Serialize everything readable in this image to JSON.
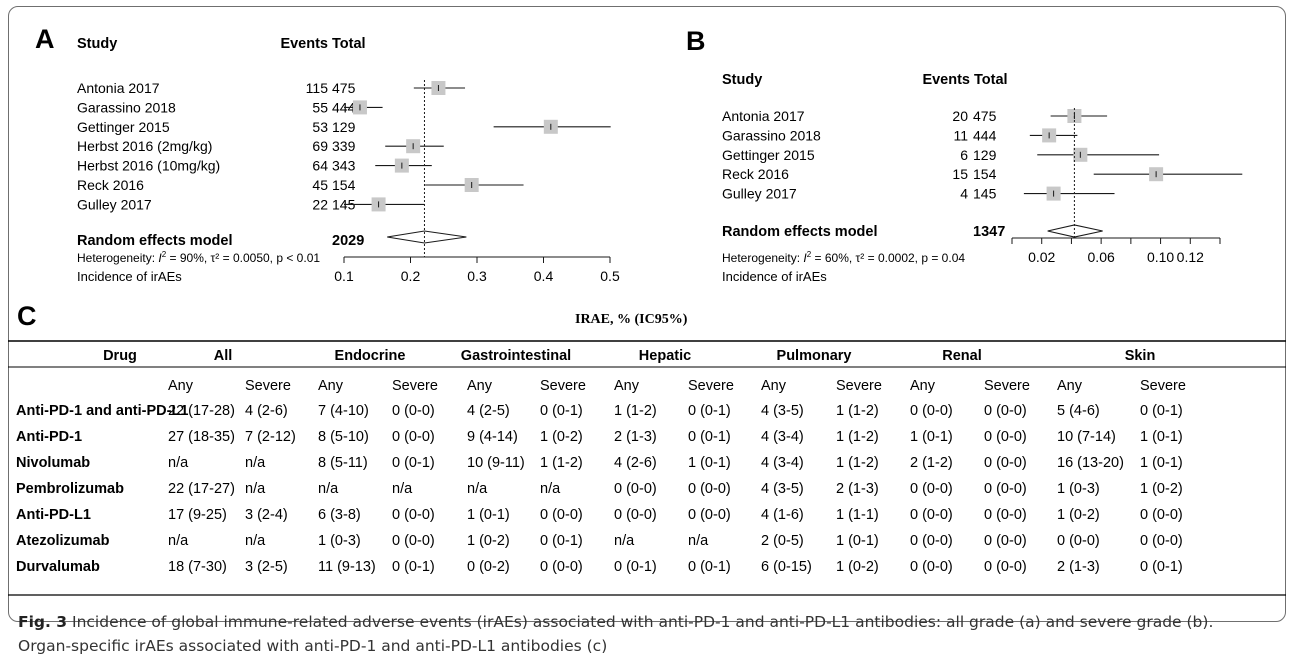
{
  "panels": {
    "a": {
      "letter": "A",
      "col_study": "Study",
      "col_events": "Events",
      "col_total": "Total",
      "model_label": "Random effects model",
      "model_total": "2029",
      "heterogeneity_prefix": "Heterogeneity: ",
      "heterogeneity_stats": " = 90%, τ² = 0.0050, p < 0.01",
      "xlabel": "Incidence of irAEs"
    },
    "b": {
      "letter": "B",
      "col_study": "Study",
      "col_events": "Events",
      "col_total": "Total",
      "model_label": "Random effects model",
      "model_total": "1347",
      "heterogeneity_prefix": "Heterogeneity: ",
      "heterogeneity_stats": " = 60%, τ² = 0.0002, p = 0.04",
      "xlabel": "Incidence of irAEs"
    },
    "c": {
      "letter": "C",
      "title": "IRAE, % (IC95%)"
    }
  },
  "chart_data": [
    {
      "type": "forest",
      "panel": "A",
      "xlabel": "Incidence of irAEs",
      "xlim": [
        0.1,
        0.5
      ],
      "ticks": [
        "0.1",
        "0.2",
        "0.3",
        "0.4",
        "0.5"
      ],
      "tick_values": [
        0.1,
        0.2,
        0.3,
        0.4,
        0.5
      ],
      "studies": [
        {
          "name": "Antonia 2017",
          "events": "115",
          "total": "475",
          "est": 0.242,
          "lo": 0.205,
          "hi": 0.282
        },
        {
          "name": "Garassino 2018",
          "events": "55",
          "total": "444",
          "est": 0.124,
          "lo": 0.095,
          "hi": 0.158
        },
        {
          "name": "Gettinger 2015",
          "events": "53",
          "total": "129",
          "est": 0.411,
          "lo": 0.325,
          "hi": 0.501
        },
        {
          "name": "Herbst 2016 (2mg/kg)",
          "events": "69",
          "total": "339",
          "est": 0.204,
          "lo": 0.162,
          "hi": 0.25
        },
        {
          "name": "Herbst 2016 (10mg/kg)",
          "events": "64",
          "total": "343",
          "est": 0.187,
          "lo": 0.147,
          "hi": 0.232
        },
        {
          "name": "Reck 2016",
          "events": "45",
          "total": "154",
          "est": 0.292,
          "lo": 0.222,
          "hi": 0.37
        },
        {
          "name": "Gulley 2017",
          "events": "22",
          "total": "145",
          "est": 0.152,
          "lo": 0.097,
          "hi": 0.221
        }
      ],
      "pooled": {
        "est": 0.221,
        "lo": 0.165,
        "hi": 0.284
      },
      "reference_line": 0.221
    },
    {
      "type": "forest",
      "panel": "B",
      "xlabel": "Incidence of irAEs",
      "xlim": [
        0.0,
        0.14
      ],
      "ticks": [
        "0.02",
        "0.06",
        "0.10",
        "0.12"
      ],
      "tick_values": [
        0.02,
        0.06,
        0.1,
        0.12
      ],
      "studies": [
        {
          "name": "Antonia 2017",
          "events": "20",
          "total": "475",
          "est": 0.042,
          "lo": 0.026,
          "hi": 0.064
        },
        {
          "name": "Garassino 2018",
          "events": "11",
          "total": "444",
          "est": 0.025,
          "lo": 0.012,
          "hi": 0.044
        },
        {
          "name": "Gettinger 2015",
          "events": "6",
          "total": "129",
          "est": 0.046,
          "lo": 0.017,
          "hi": 0.099
        },
        {
          "name": "Reck 2016",
          "events": "15",
          "total": "154",
          "est": 0.097,
          "lo": 0.055,
          "hi": 0.155
        },
        {
          "name": "Gulley 2017",
          "events": "4",
          "total": "145",
          "est": 0.028,
          "lo": 0.008,
          "hi": 0.069
        }
      ],
      "pooled": {
        "est": 0.042,
        "lo": 0.024,
        "hi": 0.061
      },
      "reference_line": 0.042
    },
    {
      "type": "table",
      "panel": "C",
      "title": "IRAE, % (IC95%)",
      "columns": [
        "Drug",
        "All",
        "Endocrine",
        "Gastrointestinal",
        "Hepatic",
        "Pulmonary",
        "Renal",
        "Skin"
      ],
      "subheaders": [
        "Any",
        "Severe"
      ],
      "rows": [
        {
          "drug": "Anti-PD-1 and anti-PD-L1",
          "cells": [
            "22 (17-28)",
            "4 (2-6)",
            "7 (4-10)",
            "0 (0-0)",
            "4 (2-5)",
            "0 (0-1)",
            "1 (1-2)",
            "0 (0-1)",
            "4 (3-5)",
            "1 (1-2)",
            "0 (0-0)",
            "0 (0-0)",
            "5 (4-6)",
            "0 (0-1)"
          ]
        },
        {
          "drug": "Anti-PD-1",
          "cells": [
            "27 (18-35)",
            "7 (2-12)",
            "8 (5-10)",
            "0 (0-0)",
            "9 (4-14)",
            "1 (0-2)",
            "2 (1-3)",
            "0 (0-1)",
            "4 (3-4)",
            "1 (1-2)",
            "1 (0-1)",
            "0 (0-0)",
            "10 (7-14)",
            "1 (0-1)"
          ]
        },
        {
          "drug": "Nivolumab",
          "cells": [
            "n/a",
            "n/a",
            "8 (5-11)",
            "0 (0-1)",
            "10 (9-11)",
            "1 (1-2)",
            "4 (2-6)",
            "1 (0-1)",
            "4 (3-4)",
            "1 (1-2)",
            "2 (1-2)",
            "0 (0-0)",
            "16 (13-20)",
            "1 (0-1)"
          ]
        },
        {
          "drug": "Pembrolizumab",
          "cells": [
            "22 (17-27)",
            "n/a",
            "n/a",
            "n/a",
            "n/a",
            "n/a",
            "0 (0-0)",
            "0 (0-0)",
            "4 (3-5)",
            "2 (1-3)",
            "0 (0-0)",
            "0 (0-0)",
            "1 (0-3)",
            "1 (0-2)"
          ]
        },
        {
          "drug": "Anti-PD-L1",
          "cells": [
            "17 (9-25)",
            "3 (2-4)",
            "6 (3-8)",
            "0 (0-0)",
            "1 (0-1)",
            "0 (0-0)",
            "0 (0-0)",
            "0 (0-0)",
            "4 (1-6)",
            "1 (1-1)",
            "0 (0-0)",
            "0 (0-0)",
            "1 (0-2)",
            "0 (0-0)"
          ]
        },
        {
          "drug": "Atezolizumab",
          "cells": [
            "n/a",
            "n/a",
            "1 (0-3)",
            "0 (0-0)",
            "1 (0-2)",
            "0 (0-1)",
            "n/a",
            "n/a",
            "2 (0-5)",
            "1 (0-1)",
            "0 (0-0)",
            "0 (0-0)",
            "0 (0-0)",
            "0 (0-0)"
          ]
        },
        {
          "drug": "Durvalumab",
          "cells": [
            "18 (7-30)",
            "3 (2-5)",
            "11 (9-13)",
            "0 (0-1)",
            "0 (0-2)",
            "0 (0-0)",
            "0 (0-1)",
            "0 (0-1)",
            "6 (0-15)",
            "1 (0-2)",
            "0 (0-0)",
            "0 (0-0)",
            "2 (1-3)",
            "0 (0-1)"
          ]
        }
      ]
    }
  ],
  "caption": {
    "label": "Fig. 3",
    "text": " Incidence of global immune-related adverse events (irAEs) associated with anti-PD-1 and anti-PD-L1 antibodies: all grade (a) and severe grade (b). Organ-specific irAEs associated with anti-PD-1 and anti-PD-L1 antibodies (c)"
  },
  "colors": {
    "ink": "#1a1a1a",
    "square": "#c8c8c8",
    "frame": "#6f6f6f",
    "caption": "#333333"
  }
}
